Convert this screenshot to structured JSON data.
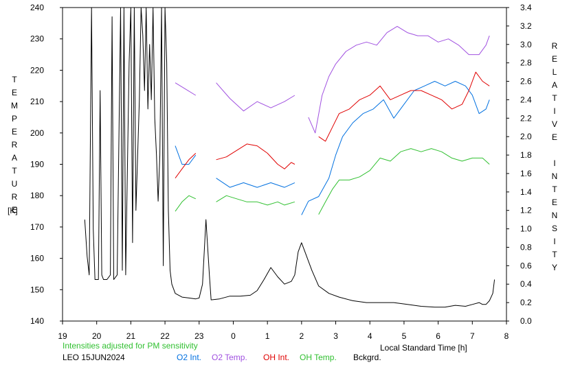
{
  "chart_data": {
    "type": "line",
    "left_axis": {
      "label_letters": [
        "T",
        "E",
        "M",
        "P",
        "E",
        "R",
        "A",
        "T",
        "U",
        "R",
        "E"
      ],
      "unit": "[K]",
      "ylim": [
        140,
        240
      ],
      "ticks": [
        "140",
        "150",
        "160",
        "170",
        "180",
        "190",
        "200",
        "210",
        "220",
        "230",
        "240"
      ]
    },
    "right_axis": {
      "label_letters": [
        "R",
        "E",
        "L",
        "A",
        "T",
        "I",
        "V",
        "E",
        "",
        "I",
        "N",
        "T",
        "E",
        "N",
        "S",
        "I",
        "T",
        "Y"
      ],
      "ylim": [
        0.0,
        3.4
      ],
      "ticks": [
        "0.0",
        "0.2",
        "0.4",
        "0.6",
        "0.8",
        "1.0",
        "1.2",
        "1.4",
        "1.6",
        "1.8",
        "2.0",
        "2.2",
        "2.4",
        "2.6",
        "2.8",
        "3.0",
        "3.2",
        "3.4"
      ]
    },
    "x_axis": {
      "label": "Local Standard Time [h]",
      "ticks": [
        "19",
        "20",
        "21",
        "22",
        "23",
        "0",
        "1",
        "2",
        "3",
        "4",
        "5",
        "6",
        "7",
        "8"
      ]
    },
    "note": "Intensities adjusted for PM sensitivity",
    "station": "LEO 15JUN2024",
    "legend": [
      {
        "name": "O2 Int.",
        "color": "#0070e0"
      },
      {
        "name": "O2 Temp.",
        "color": "#a050e0"
      },
      {
        "name": "OH Int.",
        "color": "#e00000"
      },
      {
        "name": "OH Temp.",
        "color": "#30c030"
      },
      {
        "name": "Bckgrd.",
        "color": "#000000"
      }
    ],
    "series": [
      {
        "name": "O2 Temp.",
        "axis": "left",
        "color": "#a050e0",
        "segments": [
          [
            [
              22.3,
              216
            ],
            [
              22.6,
              214
            ],
            [
              22.9,
              212
            ]
          ],
          [
            [
              23.5,
              216
            ],
            [
              23.9,
              211
            ],
            [
              24.3,
              207
            ],
            [
              24.7,
              210
            ],
            [
              25.1,
              208
            ],
            [
              25.5,
              210
            ],
            [
              25.8,
              212
            ]
          ],
          [
            [
              26.2,
              205
            ],
            [
              26.4,
              200
            ],
            [
              26.6,
              212
            ],
            [
              26.8,
              218
            ],
            [
              27.0,
              222
            ],
            [
              27.3,
              226
            ],
            [
              27.6,
              228
            ],
            [
              27.9,
              229
            ],
            [
              28.2,
              228
            ],
            [
              28.5,
              232
            ],
            [
              28.8,
              234
            ],
            [
              29.1,
              232
            ],
            [
              29.4,
              231
            ],
            [
              29.7,
              231
            ],
            [
              30.0,
              229
            ],
            [
              30.3,
              230
            ],
            [
              30.6,
              228
            ],
            [
              30.9,
              225
            ],
            [
              31.2,
              225
            ],
            [
              31.4,
              228
            ],
            [
              31.5,
              231
            ]
          ]
        ]
      },
      {
        "name": "O2 Int.",
        "axis": "right",
        "color": "#0070e0",
        "segments": [
          [
            [
              22.3,
              1.9
            ],
            [
              22.5,
              1.7
            ],
            [
              22.7,
              1.7
            ],
            [
              22.9,
              1.8
            ]
          ],
          [
            [
              23.5,
              1.55
            ],
            [
              23.9,
              1.45
            ],
            [
              24.3,
              1.5
            ],
            [
              24.7,
              1.45
            ],
            [
              25.1,
              1.5
            ],
            [
              25.5,
              1.45
            ],
            [
              25.8,
              1.5
            ]
          ],
          [
            [
              26.0,
              1.15
            ],
            [
              26.2,
              1.3
            ],
            [
              26.5,
              1.35
            ],
            [
              26.8,
              1.55
            ],
            [
              27.0,
              1.8
            ],
            [
              27.2,
              2.0
            ],
            [
              27.5,
              2.15
            ],
            [
              27.8,
              2.25
            ],
            [
              28.1,
              2.3
            ],
            [
              28.4,
              2.4
            ],
            [
              28.7,
              2.2
            ],
            [
              29.0,
              2.35
            ],
            [
              29.3,
              2.5
            ],
            [
              29.6,
              2.55
            ],
            [
              29.9,
              2.6
            ],
            [
              30.2,
              2.55
            ],
            [
              30.5,
              2.6
            ],
            [
              30.8,
              2.55
            ],
            [
              31.0,
              2.45
            ],
            [
              31.2,
              2.25
            ],
            [
              31.4,
              2.3
            ],
            [
              31.5,
              2.4
            ]
          ]
        ]
      },
      {
        "name": "OH Int.",
        "axis": "right",
        "color": "#e00000",
        "segments": [
          [
            [
              22.3,
              1.55
            ],
            [
              22.5,
              1.65
            ],
            [
              22.7,
              1.75
            ],
            [
              22.9,
              1.82
            ]
          ],
          [
            [
              23.5,
              1.75
            ],
            [
              23.8,
              1.78
            ],
            [
              24.1,
              1.85
            ],
            [
              24.4,
              1.92
            ],
            [
              24.7,
              1.9
            ],
            [
              25.0,
              1.82
            ],
            [
              25.3,
              1.7
            ],
            [
              25.5,
              1.65
            ],
            [
              25.7,
              1.72
            ],
            [
              25.8,
              1.7
            ]
          ],
          [
            [
              26.5,
              2.0
            ],
            [
              26.7,
              1.95
            ],
            [
              26.9,
              2.1
            ],
            [
              27.1,
              2.25
            ],
            [
              27.4,
              2.3
            ],
            [
              27.7,
              2.4
            ],
            [
              28.0,
              2.45
            ],
            [
              28.3,
              2.55
            ],
            [
              28.6,
              2.4
            ],
            [
              28.9,
              2.45
            ],
            [
              29.2,
              2.5
            ],
            [
              29.5,
              2.5
            ],
            [
              29.8,
              2.45
            ],
            [
              30.1,
              2.4
            ],
            [
              30.4,
              2.3
            ],
            [
              30.7,
              2.35
            ],
            [
              30.9,
              2.5
            ],
            [
              31.1,
              2.7
            ],
            [
              31.3,
              2.6
            ],
            [
              31.5,
              2.55
            ]
          ]
        ]
      },
      {
        "name": "OH Temp.",
        "axis": "left",
        "color": "#30c030",
        "segments": [
          [
            [
              22.3,
              175
            ],
            [
              22.5,
              178
            ],
            [
              22.7,
              180
            ],
            [
              22.9,
              179
            ]
          ],
          [
            [
              23.5,
              178
            ],
            [
              23.8,
              180
            ],
            [
              24.1,
              179
            ],
            [
              24.4,
              178
            ],
            [
              24.7,
              178
            ],
            [
              25.0,
              177
            ],
            [
              25.3,
              178
            ],
            [
              25.5,
              177
            ],
            [
              25.8,
              178
            ]
          ],
          [
            [
              26.5,
              174
            ],
            [
              26.7,
              178
            ],
            [
              26.9,
              182
            ],
            [
              27.1,
              185
            ],
            [
              27.4,
              185
            ],
            [
              27.7,
              186
            ],
            [
              28.0,
              188
            ],
            [
              28.3,
              192
            ],
            [
              28.6,
              191
            ],
            [
              28.9,
              194
            ],
            [
              29.2,
              195
            ],
            [
              29.5,
              194
            ],
            [
              29.8,
              195
            ],
            [
              30.1,
              194
            ],
            [
              30.4,
              192
            ],
            [
              30.7,
              191
            ],
            [
              31.0,
              192
            ],
            [
              31.3,
              192
            ],
            [
              31.5,
              190
            ]
          ]
        ]
      },
      {
        "name": "Bckgrd.",
        "axis": "right",
        "color": "#000000",
        "segments": [
          [
            [
              19.65,
              1.1
            ],
            [
              19.72,
              0.7
            ],
            [
              19.78,
              0.5
            ],
            [
              19.85,
              3.4
            ],
            [
              19.9,
              1.0
            ],
            [
              19.95,
              0.45
            ],
            [
              20.05,
              0.45
            ],
            [
              20.1,
              2.5
            ],
            [
              20.15,
              0.5
            ],
            [
              20.2,
              0.45
            ],
            [
              20.3,
              0.45
            ],
            [
              20.4,
              0.5
            ],
            [
              20.45,
              3.3
            ],
            [
              20.5,
              0.45
            ],
            [
              20.6,
              0.5
            ],
            [
              20.7,
              3.4
            ],
            [
              20.75,
              0.55
            ],
            [
              20.8,
              3.4
            ],
            [
              20.85,
              0.5
            ],
            [
              20.95,
              2.8
            ],
            [
              21.0,
              3.4
            ],
            [
              21.05,
              0.85
            ],
            [
              21.1,
              3.4
            ],
            [
              21.15,
              1.2
            ],
            [
              21.25,
              2.4
            ],
            [
              21.3,
              3.4
            ],
            [
              21.35,
              3.1
            ],
            [
              21.4,
              2.5
            ],
            [
              21.45,
              3.4
            ],
            [
              21.5,
              2.3
            ],
            [
              21.55,
              3.0
            ],
            [
              21.6,
              2.4
            ],
            [
              21.65,
              3.4
            ],
            [
              21.7,
              2.2
            ],
            [
              21.75,
              1.8
            ],
            [
              21.8,
              1.3
            ],
            [
              21.85,
              1.8
            ],
            [
              21.9,
              3.4
            ],
            [
              21.95,
              0.6
            ],
            [
              22.0,
              3.4
            ],
            [
              22.05,
              2.8
            ],
            [
              22.1,
              1.2
            ],
            [
              22.15,
              0.55
            ],
            [
              22.2,
              0.4
            ],
            [
              22.3,
              0.3
            ],
            [
              22.5,
              0.26
            ],
            [
              22.7,
              0.25
            ],
            [
              22.9,
              0.24
            ],
            [
              23.0,
              0.25
            ],
            [
              23.1,
              0.4
            ],
            [
              23.2,
              1.1
            ],
            [
              23.3,
              0.5
            ],
            [
              23.35,
              0.23
            ],
            [
              23.6,
              0.24
            ],
            [
              23.9,
              0.27
            ],
            [
              24.2,
              0.27
            ],
            [
              24.5,
              0.28
            ],
            [
              24.7,
              0.33
            ],
            [
              24.9,
              0.45
            ],
            [
              25.1,
              0.58
            ],
            [
              25.3,
              0.48
            ],
            [
              25.5,
              0.4
            ],
            [
              25.7,
              0.43
            ],
            [
              25.8,
              0.5
            ],
            [
              25.9,
              0.75
            ],
            [
              26.0,
              0.85
            ],
            [
              26.1,
              0.75
            ],
            [
              26.3,
              0.55
            ],
            [
              26.5,
              0.38
            ],
            [
              26.8,
              0.3
            ],
            [
              27.1,
              0.26
            ],
            [
              27.5,
              0.22
            ],
            [
              27.9,
              0.2
            ],
            [
              28.3,
              0.2
            ],
            [
              28.7,
              0.2
            ],
            [
              29.1,
              0.18
            ],
            [
              29.5,
              0.16
            ],
            [
              29.9,
              0.15
            ],
            [
              30.2,
              0.15
            ],
            [
              30.5,
              0.17
            ],
            [
              30.8,
              0.16
            ],
            [
              31.0,
              0.18
            ],
            [
              31.2,
              0.2
            ],
            [
              31.3,
              0.18
            ],
            [
              31.4,
              0.18
            ],
            [
              31.5,
              0.22
            ],
            [
              31.6,
              0.3
            ],
            [
              31.65,
              0.45
            ]
          ]
        ]
      }
    ]
  }
}
